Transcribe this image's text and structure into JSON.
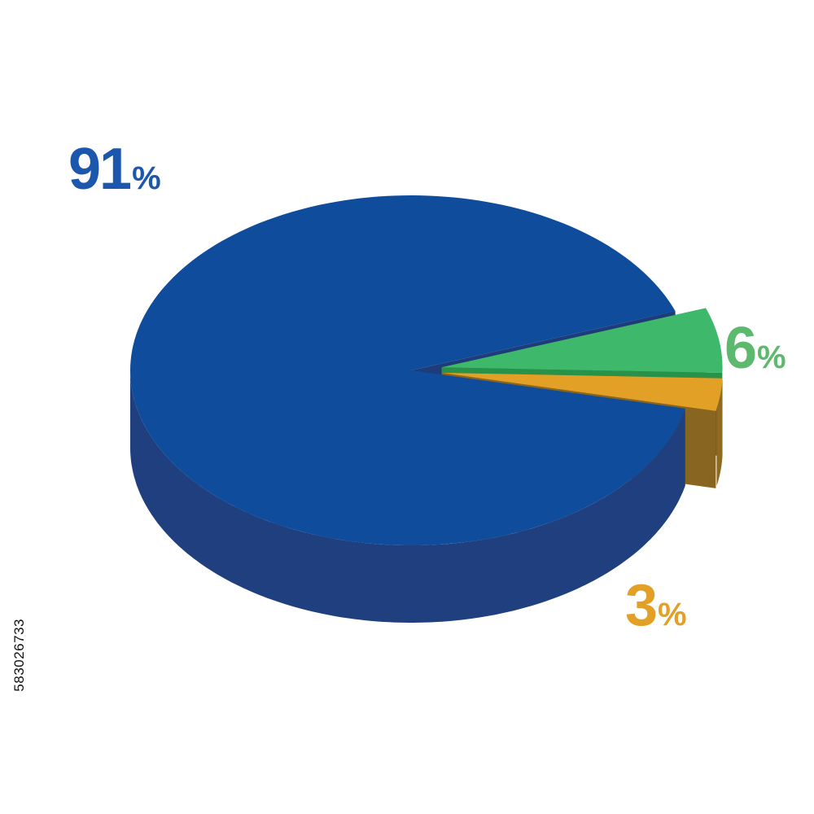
{
  "chart_data": {
    "type": "pie",
    "style": "3d",
    "title": "",
    "categories": [
      "91%",
      "6%",
      "3%"
    ],
    "values": [
      91,
      6,
      3
    ],
    "colors": [
      "#0f4c9c",
      "#3eb86a",
      "#e2a126"
    ],
    "side_colors": [
      "#1f3f7f",
      "#2a9a4c",
      "#8f6a22"
    ],
    "exploded": [
      false,
      true,
      true
    ],
    "labels": [
      {
        "number": "91",
        "unit": "%",
        "color": "#1a57ad"
      },
      {
        "number": "6",
        "unit": "%",
        "color": "#5cb96d"
      },
      {
        "number": "3",
        "unit": "%",
        "color": "#e2a126"
      }
    ],
    "legend": "none",
    "grid": false
  },
  "watermark": {
    "stock_id": "583026733"
  }
}
